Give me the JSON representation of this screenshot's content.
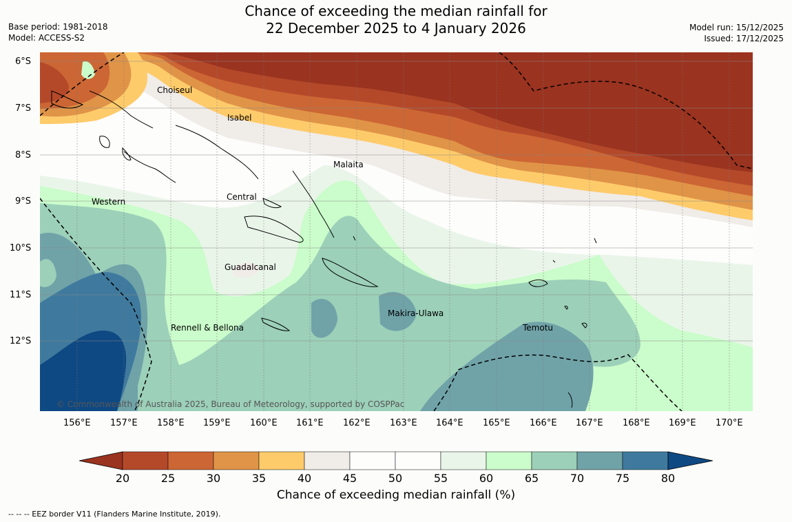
{
  "header": {
    "title_line1": "Chance of exceeding the median rainfall for",
    "title_line2": "22 December 2025 to 4 January 2026",
    "base_period": "Base period: 1981-2018",
    "model": "Model: ACCESS-S2",
    "model_run": "Model run: 15/12/2025",
    "issued": "Issued: 17/12/2025"
  },
  "map": {
    "lat_labels": [
      "6°S",
      "7°S",
      "8°S",
      "9°S",
      "10°S",
      "11°S",
      "12°S"
    ],
    "lon_labels": [
      "156°E",
      "157°E",
      "158°E",
      "159°E",
      "160°E",
      "161°E",
      "162°E",
      "163°E",
      "164°E",
      "165°E",
      "166°E",
      "167°E",
      "168°E",
      "169°E",
      "170°E"
    ],
    "places": {
      "choiseul": "Choiseul",
      "isabel": "Isabel",
      "malaita": "Malaita",
      "western": "Western",
      "central": "Central",
      "guadalcanal": "Guadalcanal",
      "makira": "Makira-Ulawa",
      "temotu": "Temotu",
      "rennell": "Rennell & Bellona"
    },
    "copyright": "© Commonwealth of Australia 2025, Bureau of Meteorology, supported by COSPPac"
  },
  "colorbar": {
    "ticks": [
      "20",
      "25",
      "30",
      "35",
      "40",
      "45",
      "50",
      "55",
      "60",
      "65",
      "70",
      "75",
      "80"
    ],
    "colors": [
      "#9a331f",
      "#b4492a",
      "#cc6634",
      "#e09448",
      "#fecb6b",
      "#f0ece8",
      "#fdfdfc",
      "#fdfdfc",
      "#eaf5ea",
      "#cbfccb",
      "#9cd0b9",
      "#70a3a8",
      "#3f7a9e",
      "#0f4983"
    ],
    "title": "Chance of exceeding median rainfall (%)"
  },
  "footnote": "--  --  -- EEZ border V11 (Flanders Marine Institute, 2019)."
}
